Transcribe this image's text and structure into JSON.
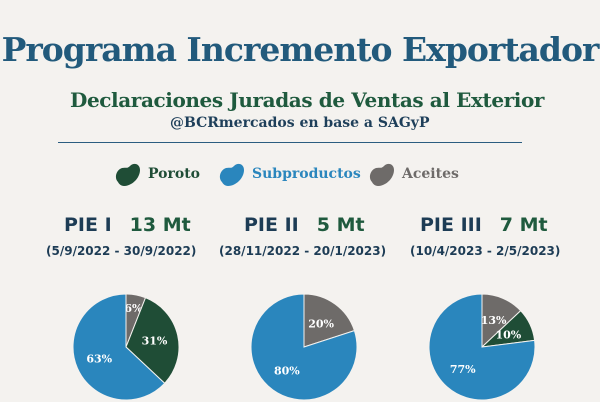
{
  "title": "Programa Incremento Exportador",
  "subtitle": "Declaraciones Juradas de Ventas al Exterior",
  "source": "@BCRmercados en base a SAGyP",
  "legend": [
    {
      "label": "Poroto",
      "color": "#1f4d36",
      "icon": "bean-icon"
    },
    {
      "label": "Subproductos",
      "color": "#2a86bd",
      "icon": "bean-icon"
    },
    {
      "label": "Aceites",
      "color": "#6e6b69",
      "icon": "bean-icon"
    }
  ],
  "chart_data": [
    {
      "type": "pie",
      "title": "PIE I",
      "volume": "13 Mt",
      "dates": "(5/9/2022 - 30/9/2022)",
      "slices": [
        {
          "category": "Aceites",
          "value": 6,
          "label": "6%"
        },
        {
          "category": "Poroto",
          "value": 31,
          "label": "31%"
        },
        {
          "category": "Subproductos",
          "value": 63,
          "label": "63%"
        }
      ]
    },
    {
      "type": "pie",
      "title": "PIE II",
      "volume": "5 Mt",
      "dates": "(28/11/2022 - 20/1/2023)",
      "slices": [
        {
          "category": "Aceites",
          "value": 20,
          "label": "20%"
        },
        {
          "category": "Subproductos",
          "value": 80,
          "label": "80%"
        }
      ]
    },
    {
      "type": "pie",
      "title": "PIE III",
      "volume": "7 Mt",
      "dates": "(10/4/2023 - 2/5/2023)",
      "slices": [
        {
          "category": "Aceites",
          "value": 13,
          "label": "13%"
        },
        {
          "category": "Poroto",
          "value": 10,
          "label": "10%"
        },
        {
          "category": "Subproductos",
          "value": 77,
          "label": "77%"
        }
      ]
    }
  ]
}
